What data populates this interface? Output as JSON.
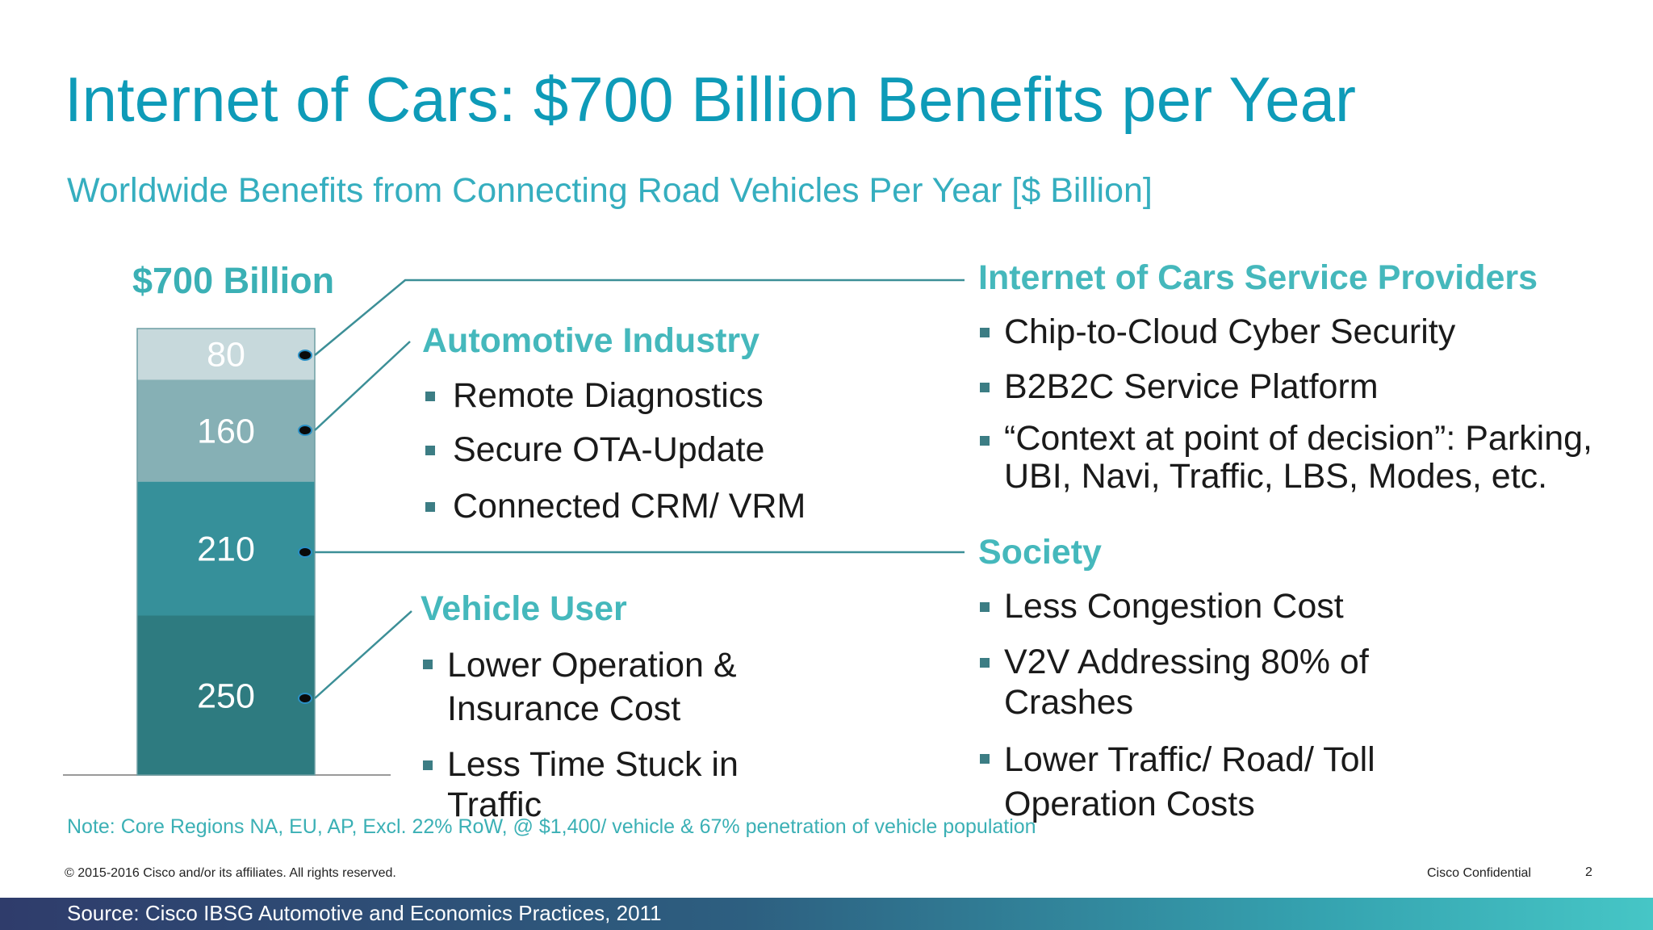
{
  "title": "Internet of Cars: $700 Billion Benefits per Year",
  "subtitle": "Worldwide Benefits from Connecting Road Vehicles Per Year [$ Billion]",
  "chart_data": {
    "type": "bar",
    "stacked": true,
    "total_label": "$700 Billion",
    "categories": [
      ""
    ],
    "series": [
      {
        "name": "Vehicle User",
        "values": [
          250
        ],
        "color": "#2e7b80"
      },
      {
        "name": "Society",
        "values": [
          210
        ],
        "color": "#36909a"
      },
      {
        "name": "Automotive Industry",
        "values": [
          160
        ],
        "color": "#86b0b5"
      },
      {
        "name": "Internet of Cars Service Providers",
        "values": [
          80
        ],
        "color": "#c7d9dc"
      }
    ],
    "segment_labels": [
      "250",
      "210",
      "160",
      "80"
    ],
    "label_color": "#ffffff",
    "connector_color": "#3c8f97"
  },
  "groups": {
    "automotive": {
      "heading": "Automotive Industry",
      "items": [
        "Remote Diagnostics",
        "Secure OTA-Update",
        "Connected CRM/ VRM"
      ]
    },
    "vehicle_user": {
      "heading": "Vehicle User",
      "items": [
        "Lower Operation & Insurance Cost",
        "Less Time Stuck in Traffic"
      ]
    },
    "service_providers": {
      "heading": "Internet of Cars Service Providers",
      "items": [
        "Chip-to-Cloud Cyber Security",
        "B2B2C Service Platform",
        "“Context at point of decision”: Parking, UBI, Navi, Traffic, LBS, Modes, etc."
      ]
    },
    "society": {
      "heading": "Society",
      "items": [
        "Less Congestion Cost",
        "V2V Addressing 80% of Crashes",
        "Lower Traffic/ Road/ Toll Operation Costs"
      ]
    }
  },
  "note": "Note: Core Regions  NA, EU, AP, Excl. 22% RoW, @ $1,400/ vehicle & 67% penetration of  vehicle population",
  "footer": {
    "copyright": "© 2015-2016  Cisco and/or its affiliates. All rights reserved.",
    "confidential": "Cisco Confidential",
    "page": "2",
    "source": "Source: Cisco IBSG Automotive and Economics Practices, 2011"
  }
}
